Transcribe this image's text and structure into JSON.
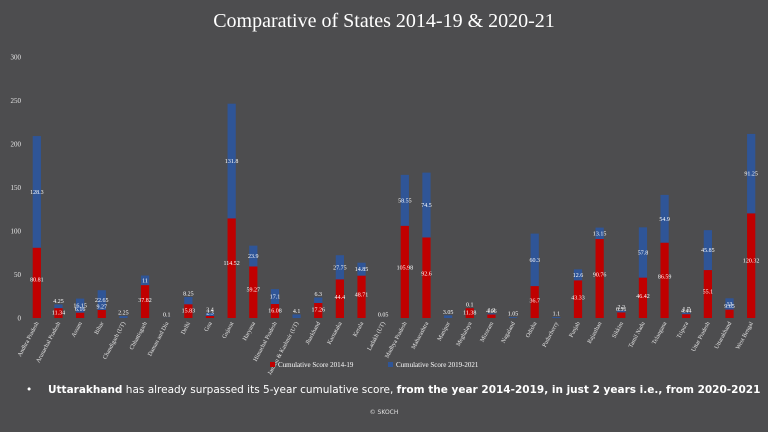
{
  "chart_data": {
    "type": "bar",
    "stacked": true,
    "title": "Comparative of States 2014-19 & 2020-21",
    "xlabel": "",
    "ylabel": "",
    "ylim": [
      0,
      300
    ],
    "yticks": [
      0,
      50,
      100,
      150,
      200,
      250,
      300
    ],
    "grid": false,
    "legend_position": "bottom",
    "categories": [
      "Andhra Pradesh",
      "Arunachal Pradesh",
      "Assam",
      "Bihar",
      "Chandigarh (UT)",
      "Chhattisgarh",
      "Daman and Diu",
      "Delhi",
      "Goa",
      "Gujarat",
      "Haryana",
      "Himachal Pradesh",
      "Jammu & Kashmir (UT)",
      "Jharkhand",
      "Karnataka",
      "Kerala",
      "Ladakh (UT)",
      "Madhya Pradesh",
      "Maharashtra",
      "Manipur",
      "Meghalaya",
      "Mizoram",
      "Nagaland",
      "Odisha",
      "Puducherry",
      "Punjab",
      "Rajasthan",
      "Sikkim",
      "Tamil Nadu",
      "Telangana",
      "Tripura",
      "Uttar Pradesh",
      "Uttarakhand",
      "West Bengal"
    ],
    "series": [
      {
        "name": "Cumulative Score 2014-19",
        "color": "#c00000",
        "values": [
          80.81,
          11.34,
          6.16,
          9.27,
          0,
          37.82,
          0,
          15.83,
          2.3,
          114.52,
          59.27,
          16.08,
          0,
          17.26,
          44.4,
          48.71,
          0,
          105.98,
          92.6,
          0,
          11.38,
          4.06,
          0,
          36.7,
          0,
          43.33,
          90.76,
          6.51,
          46.42,
          86.59,
          4.44,
          55.1,
          9.65,
          120.32
        ]
      },
      {
        "name": "Cumulative Score 2019-2021",
        "color": "#2f5597",
        "values": [
          128.3,
          4.25,
          16.15,
          22.65,
          2.25,
          11,
          0.1,
          8.25,
          3.4,
          131.8,
          23.9,
          17.1,
          4.1,
          6.3,
          27.75,
          14.85,
          0.05,
          58.55,
          74.5,
          3.05,
          0.1,
          1.2,
          1.05,
          60.3,
          1.1,
          12.6,
          13.15,
          2.2,
          57.8,
          54.9,
          1.7,
          45.85,
          13,
          91.25
        ]
      }
    ],
    "labels_2014_19": [
      "80.81",
      "11.34",
      "6.16",
      "9.27",
      "",
      "37.82",
      "",
      "15.83",
      "2.3",
      "114.52",
      "59.27",
      "16.08",
      "",
      "17.26",
      "44.4",
      "48.71",
      "",
      "105.98",
      "92.6",
      "",
      "11.38",
      "4.06",
      "",
      "36.7",
      "",
      "43.33",
      "90.76",
      "6.51",
      "46.42",
      "86.59",
      "4.44",
      "55.1",
      "9.65",
      "120.32"
    ],
    "labels_2019_2021": [
      "128.3",
      "4.25",
      "16.15",
      "22.65",
      "2.25",
      "11",
      "0.1",
      "8.25",
      "3.4",
      "131.8",
      "23.9",
      "17.1",
      "4.1",
      "6.3",
      "27.75",
      "14.85",
      "0.05",
      "58.55",
      "74.5",
      "3.05",
      "0.1",
      "1.2",
      "1.05",
      "60.3",
      "1.1",
      "12.6",
      "13.15",
      "2.2",
      "57.8",
      "54.9",
      "1.7",
      "45.85",
      "13",
      "91.25"
    ]
  },
  "note": {
    "bullet": "•",
    "state": "Uttarakhand",
    "text1": " has already surpassed its 5-year cumulative score, ",
    "emph1": "from the year 2014-2019,",
    "text2": "  in just 2 years i.e., from 2020-2021"
  },
  "copyright": "© SKOCH"
}
